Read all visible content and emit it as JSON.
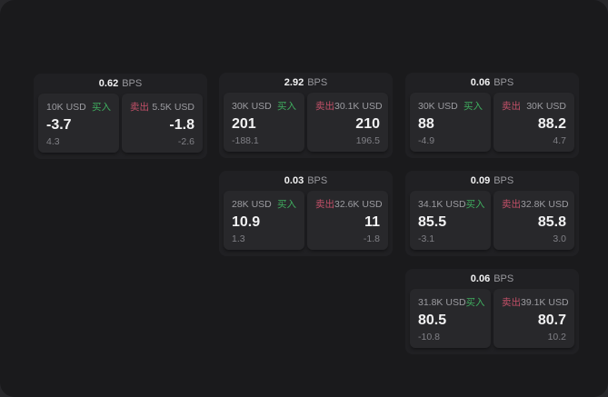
{
  "labels": {
    "bps": "BPS",
    "buy": "买入",
    "sell": "卖出"
  },
  "colors": {
    "backdrop": "#27272a",
    "window_bg": "#1a1a1c",
    "card_bg": "#202023",
    "panel_bg": "#28282b",
    "buy_green": "#3fae5f",
    "sell_red": "#c25068",
    "text_primary": "#f2f2f3",
    "text_secondary": "#9c9ca1",
    "text_dim": "#808086"
  },
  "cards": [
    {
      "bps": "0.62",
      "buy_size": "10K USD",
      "buy_price": "-3.7",
      "buy_delta": "4.3",
      "sell_size": "5.5K USD",
      "sell_price": "-1.8",
      "sell_delta": "-2.6"
    },
    {
      "bps": "2.92",
      "buy_size": "30K USD",
      "buy_price": "201",
      "buy_delta": "-188.1",
      "sell_size": "30.1K USD",
      "sell_price": "210",
      "sell_delta": "196.5"
    },
    {
      "bps": "0.06",
      "buy_size": "30K USD",
      "buy_price": "88",
      "buy_delta": "-4.9",
      "sell_size": "30K USD",
      "sell_price": "88.2",
      "sell_delta": "4.7"
    },
    {
      "bps": "0.03",
      "buy_size": "28K USD",
      "buy_price": "10.9",
      "buy_delta": "1.3",
      "sell_size": "32.6K USD",
      "sell_price": "11",
      "sell_delta": "-1.8"
    },
    {
      "bps": "0.09",
      "buy_size": "34.1K USD",
      "buy_price": "85.5",
      "buy_delta": "-3.1",
      "sell_size": "32.8K USD",
      "sell_price": "85.8",
      "sell_delta": "3.0"
    },
    {
      "bps": "0.06",
      "buy_size": "31.8K USD",
      "buy_price": "80.5",
      "buy_delta": "-10.8",
      "sell_size": "39.1K USD",
      "sell_price": "80.7",
      "sell_delta": "10.2"
    }
  ]
}
